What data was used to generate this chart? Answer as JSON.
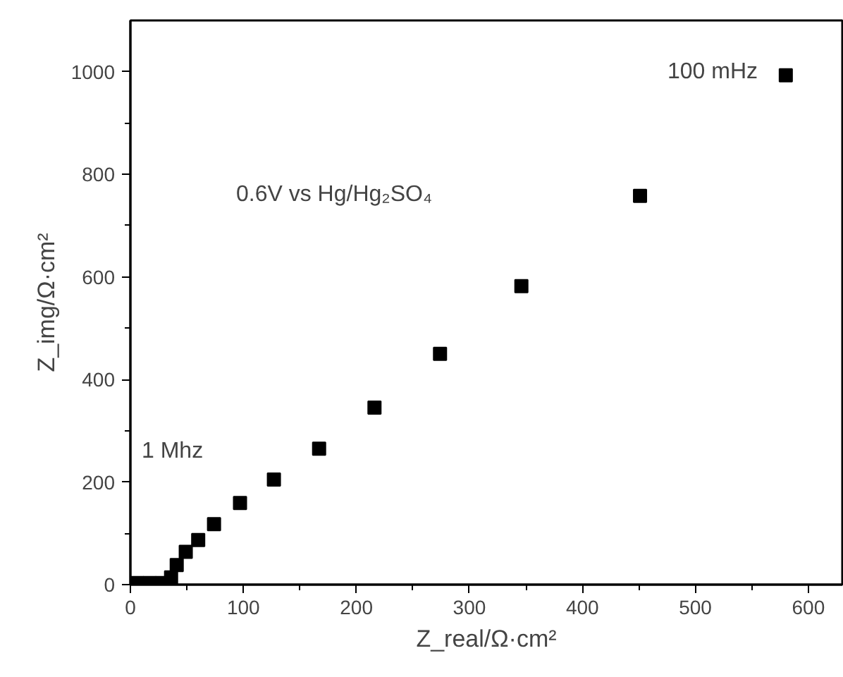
{
  "chart_data": {
    "type": "scatter",
    "xlabel": "Z_real/Ω·cm²",
    "ylabel": "Z_img/Ω·cm²",
    "annotations": [
      "100 mHz",
      "0.6V vs Hg/Hg₂SO₄",
      "1 Mhz"
    ],
    "x": [
      6,
      17,
      28,
      36,
      41,
      49,
      60,
      74,
      97,
      127,
      167,
      216,
      274,
      346,
      451,
      580
    ],
    "series": [
      {
        "color": "#000000",
        "values": [
          3,
          3,
          3,
          14,
          38,
          64,
          87,
          118,
          159,
          205,
          265,
          345,
          450,
          582,
          758,
          993
        ]
      }
    ],
    "xlim": [
      0,
      630
    ],
    "ylim": [
      0,
      1100
    ],
    "xticks": [
      0,
      {
        "value": 50,
        "label": null
      },
      100,
      {
        "value": 150,
        "label": null
      },
      200,
      {
        "value": 250,
        "label": null
      },
      300,
      {
        "value": 350,
        "label": null
      },
      400,
      {
        "value": 450,
        "label": null
      },
      500,
      {
        "value": 550,
        "label": null
      },
      600
    ],
    "yticks": [
      0,
      {
        "value": 100,
        "label": null
      },
      200,
      {
        "value": 300,
        "label": null
      },
      400,
      {
        "value": 500,
        "label": null
      },
      600,
      {
        "value": 700,
        "label": null
      },
      800,
      {
        "value": 900,
        "label": null
      },
      1000
    ],
    "grid": false,
    "marker": "square"
  }
}
